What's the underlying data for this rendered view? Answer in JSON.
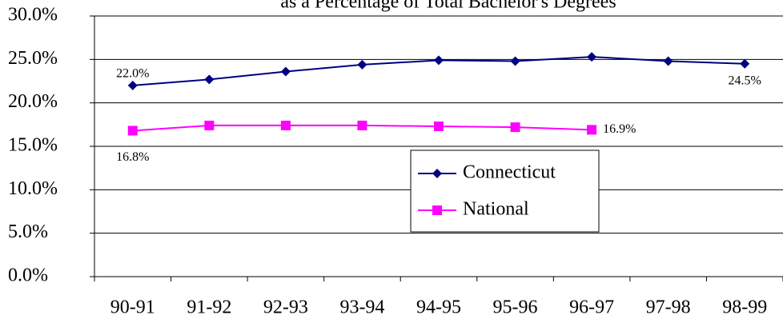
{
  "chart_data": {
    "type": "line",
    "title": "as a Percentage of Total Bachelor's Degrees",
    "categories": [
      "90-91",
      "91-92",
      "92-93",
      "93-94",
      "94-95",
      "95-96",
      "96-97",
      "97-98",
      "98-99"
    ],
    "series": [
      {
        "name": "Connecticut",
        "color": "#000080",
        "marker": "diamond",
        "values": [
          22.0,
          22.7,
          23.6,
          24.4,
          24.9,
          24.8,
          25.3,
          24.8,
          24.5
        ],
        "value_labels": [
          "22.0%",
          null,
          null,
          null,
          null,
          null,
          null,
          null,
          "24.5%"
        ]
      },
      {
        "name": "National",
        "color": "#ff00ff",
        "marker": "square",
        "values": [
          16.8,
          17.4,
          17.4,
          17.4,
          17.3,
          17.2,
          16.9,
          null,
          null
        ],
        "value_labels": [
          "16.8%",
          null,
          null,
          null,
          null,
          null,
          "16.9%",
          null,
          null
        ]
      }
    ],
    "ylim": [
      0,
      30
    ],
    "yticks": [
      {
        "value": 0,
        "label": "0.0%"
      },
      {
        "value": 5,
        "label": "5.0%"
      },
      {
        "value": 10,
        "label": "10.0%"
      },
      {
        "value": 15,
        "label": "15.0%"
      },
      {
        "value": 20,
        "label": "20.0%"
      },
      {
        "value": 25,
        "label": "25.0%"
      },
      {
        "value": 30,
        "label": "30.0%"
      }
    ],
    "grid": true
  }
}
